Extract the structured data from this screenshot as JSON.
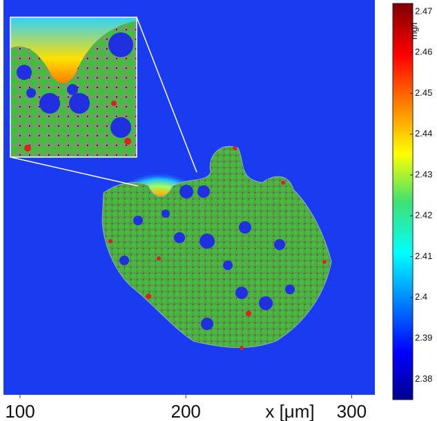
{
  "chart_data": {
    "type": "heatmap",
    "xlabel": "x [μm]",
    "xlim": [
      90,
      314
    ],
    "xticks": [
      100,
      200,
      300
    ],
    "colorbar_label": "mg/l",
    "clim": [
      2.375,
      2.472
    ],
    "cticks": [
      2.38,
      2.39,
      2.4,
      2.41,
      2.42,
      2.43,
      2.44,
      2.45,
      2.46,
      2.47
    ],
    "colormap": "jet"
  }
}
